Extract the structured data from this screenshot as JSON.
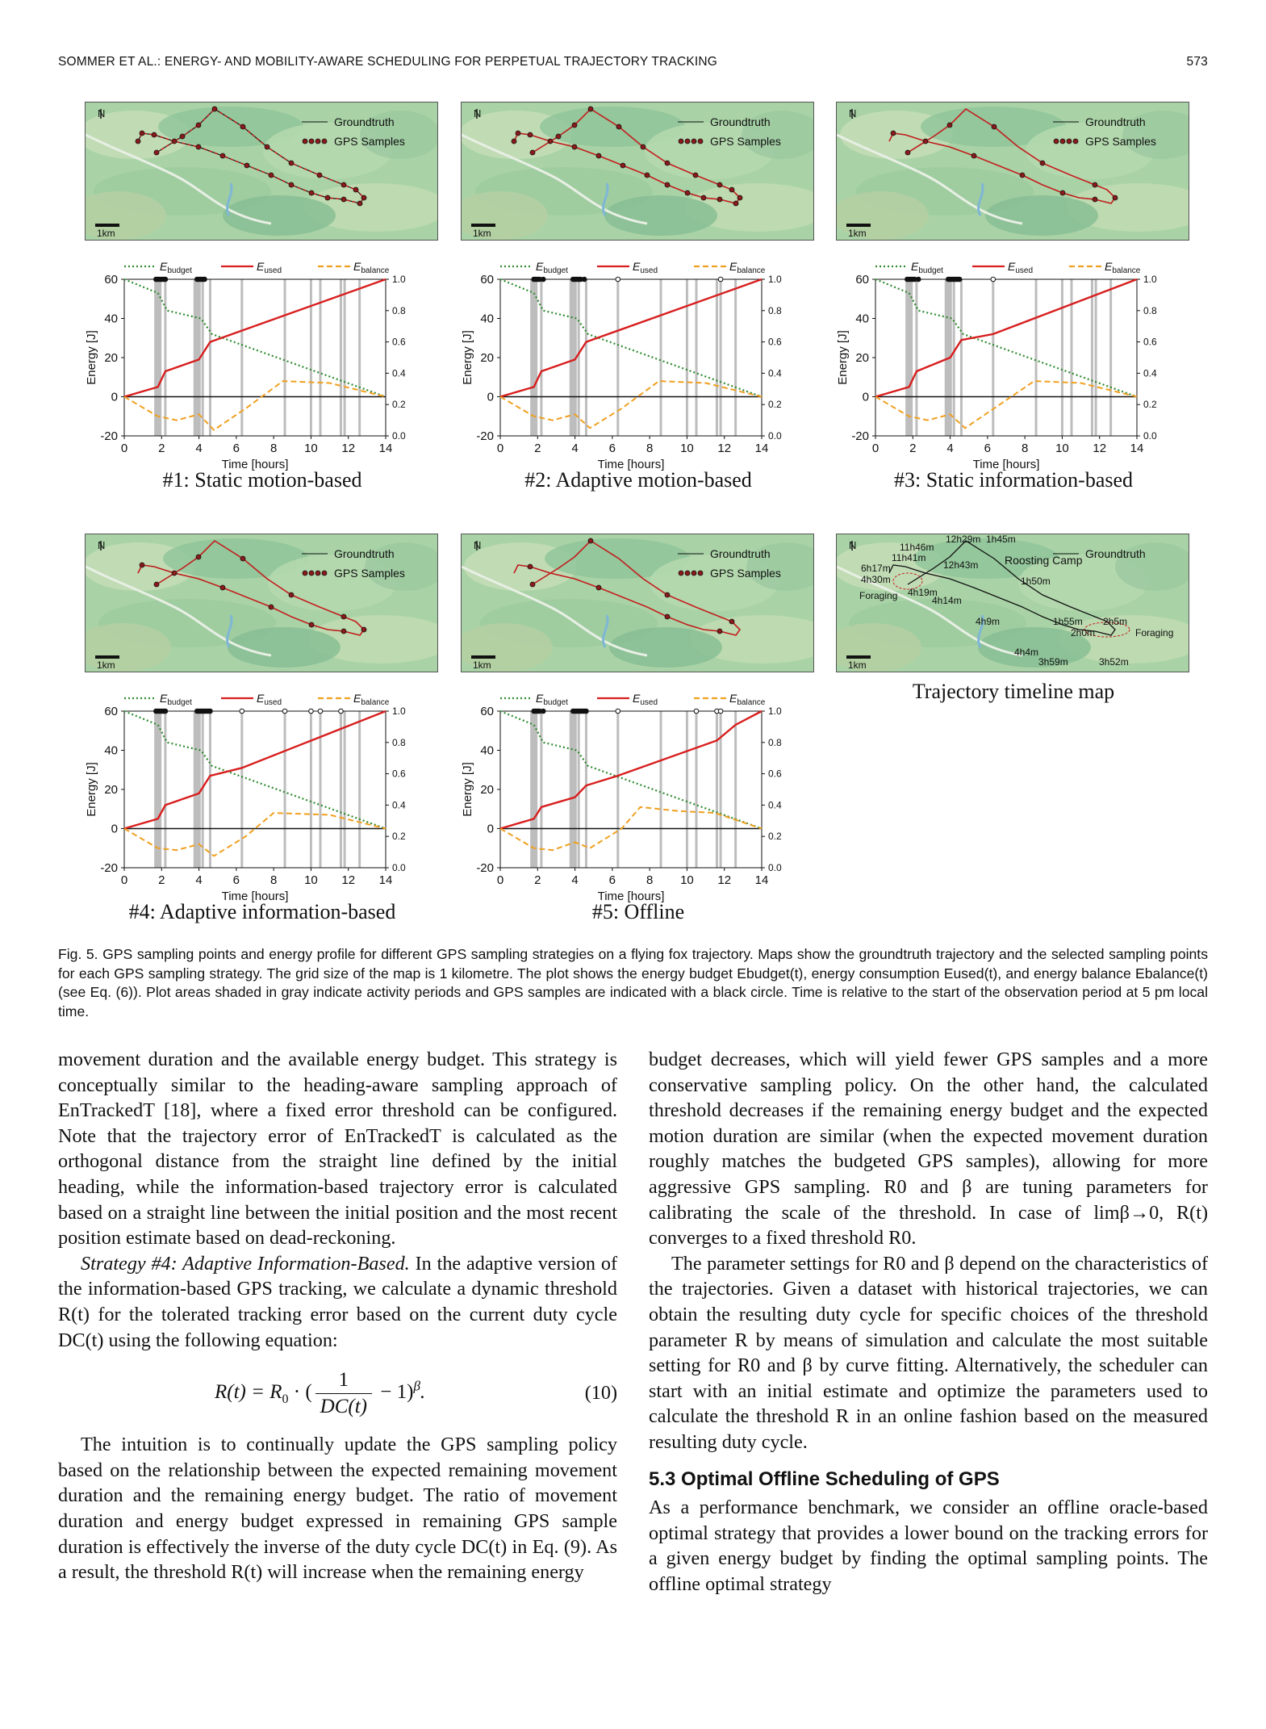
{
  "header": {
    "running_title": "SOMMER ET AL.: ENERGY- AND MOBILITY-AWARE SCHEDULING FOR PERPETUAL TRAJECTORY TRACKING",
    "page_number": "573"
  },
  "map_common": {
    "north": "N",
    "scale": "1km",
    "legend_groundtruth": "Groundtruth",
    "legend_samples": "GPS Samples"
  },
  "timeline_map": {
    "caption": "Trajectory timeline map",
    "labels": [
      "12h29m",
      "1h45m",
      "11h46m",
      "11h41m",
      "12h43m",
      "Roosting Camp",
      "6h17m",
      "4h30m",
      "1h50m",
      "Foraging",
      "4h19m",
      "4h14m",
      "4h9m",
      "1h55m",
      "2h5m",
      "2h0m",
      "Foraging",
      "4h4m",
      "3h59m",
      "3h52m"
    ]
  },
  "plot_common": {
    "legend_budget": "E",
    "legend_budget_sub": "budget",
    "legend_used": "E",
    "legend_used_sub": "used",
    "legend_balance": "E",
    "legend_balance_sub": "balance",
    "ylabel": "Energy [J]",
    "xlabel": "Time [hours]"
  },
  "chart_data": [
    {
      "type": "line",
      "title": "#1: Static motion-based",
      "x": [
        0,
        2,
        4,
        6,
        8,
        10,
        12,
        14
      ],
      "xlim": [
        0,
        14
      ],
      "ylim": [
        -20,
        60
      ],
      "y2lim": [
        0.0,
        1.0
      ],
      "xlabel": "Time [hours]",
      "ylabel": "Energy [J]",
      "series": [
        {
          "name": "E_budget",
          "points": [
            [
              0,
              60
            ],
            [
              1.8,
              53
            ],
            [
              2.3,
              44
            ],
            [
              4.1,
              40
            ],
            [
              4.7,
              32
            ],
            [
              14,
              0
            ]
          ]
        },
        {
          "name": "E_used",
          "points": [
            [
              0,
              0
            ],
            [
              1.8,
              5
            ],
            [
              2.2,
              13
            ],
            [
              4.0,
              19
            ],
            [
              4.6,
              28
            ],
            [
              14,
              60
            ]
          ]
        },
        {
          "name": "E_balance",
          "points": [
            [
              0,
              0
            ],
            [
              1.8,
              -10
            ],
            [
              2.8,
              -12
            ],
            [
              4.0,
              -9
            ],
            [
              4.8,
              -17
            ],
            [
              6.5,
              -6
            ],
            [
              8.5,
              8
            ],
            [
              11,
              7
            ],
            [
              14,
              0
            ]
          ]
        }
      ],
      "samples_hours": [
        1.7,
        1.8,
        1.9,
        2.0,
        2.1,
        2.2,
        3.9,
        4.0,
        4.1,
        4.2,
        4.3
      ],
      "activity_hours": [
        1.8,
        2.2,
        3.9,
        4.2,
        4.6,
        6.3,
        8.6,
        10.0,
        10.5,
        11.6,
        11.8,
        12.6
      ]
    },
    {
      "type": "line",
      "title": "#2: Adaptive motion-based",
      "x": [
        0,
        2,
        4,
        6,
        8,
        10,
        12,
        14
      ],
      "xlim": [
        0,
        14
      ],
      "ylim": [
        -20,
        60
      ],
      "y2lim": [
        0.0,
        1.0
      ],
      "xlabel": "Time [hours]",
      "ylabel": "Energy [J]",
      "series": [
        {
          "name": "E_budget",
          "points": [
            [
              0,
              60
            ],
            [
              1.8,
              53
            ],
            [
              2.3,
              44
            ],
            [
              4.1,
              40
            ],
            [
              4.7,
              32
            ],
            [
              14,
              0
            ]
          ]
        },
        {
          "name": "E_used",
          "points": [
            [
              0,
              0
            ],
            [
              1.8,
              5
            ],
            [
              2.2,
              13
            ],
            [
              4.0,
              19
            ],
            [
              4.6,
              28
            ],
            [
              14,
              60
            ]
          ]
        },
        {
          "name": "E_balance",
          "points": [
            [
              0,
              0
            ],
            [
              1.8,
              -10
            ],
            [
              2.8,
              -12
            ],
            [
              4.0,
              -9
            ],
            [
              4.8,
              -16
            ],
            [
              6.5,
              -6
            ],
            [
              8.5,
              8
            ],
            [
              11,
              7
            ],
            [
              14,
              0
            ]
          ]
        }
      ],
      "samples_hours": [
        1.8,
        1.9,
        2.0,
        2.1,
        2.3,
        3.9,
        4.0,
        4.1,
        4.2,
        4.3,
        4.5,
        6.3,
        11.8
      ],
      "activity_hours": [
        1.8,
        2.2,
        3.9,
        4.2,
        4.6,
        6.3,
        8.6,
        10.0,
        10.5,
        11.6,
        11.8,
        12.6
      ]
    },
    {
      "type": "line",
      "title": "#3: Static information-based",
      "x": [
        0,
        2,
        4,
        6,
        8,
        10,
        12,
        14
      ],
      "xlim": [
        0,
        14
      ],
      "ylim": [
        -20,
        60
      ],
      "y2lim": [
        0.0,
        1.0
      ],
      "xlabel": "Time [hours]",
      "ylabel": "Energy [J]",
      "series": [
        {
          "name": "E_budget",
          "points": [
            [
              0,
              60
            ],
            [
              1.8,
              53
            ],
            [
              2.3,
              44
            ],
            [
              4.1,
              40
            ],
            [
              4.7,
              32
            ],
            [
              14,
              0
            ]
          ]
        },
        {
          "name": "E_used",
          "points": [
            [
              0,
              0
            ],
            [
              1.8,
              5
            ],
            [
              2.2,
              13
            ],
            [
              4.0,
              20
            ],
            [
              4.6,
              29
            ],
            [
              6.3,
              32
            ],
            [
              14,
              60
            ]
          ]
        },
        {
          "name": "E_balance",
          "points": [
            [
              0,
              0
            ],
            [
              1.8,
              -10
            ],
            [
              2.8,
              -12
            ],
            [
              4.0,
              -9
            ],
            [
              4.8,
              -16
            ],
            [
              6.5,
              -5
            ],
            [
              8.5,
              8
            ],
            [
              11,
              7
            ],
            [
              14,
              0
            ]
          ]
        }
      ],
      "samples_hours": [
        1.7,
        1.8,
        1.9,
        2.0,
        2.1,
        2.3,
        3.9,
        4.0,
        4.1,
        4.2,
        4.3,
        4.4,
        4.5,
        6.3
      ],
      "activity_hours": [
        1.8,
        2.2,
        3.9,
        4.2,
        4.6,
        6.3,
        8.6,
        10.0,
        10.5,
        11.6,
        11.8,
        12.6
      ]
    },
    {
      "type": "line",
      "title": "#4: Adaptive information-based",
      "x": [
        0,
        2,
        4,
        6,
        8,
        10,
        12,
        14
      ],
      "xlim": [
        0,
        14
      ],
      "ylim": [
        -20,
        60
      ],
      "y2lim": [
        0.0,
        1.0
      ],
      "xlabel": "Time [hours]",
      "ylabel": "Energy [J]",
      "series": [
        {
          "name": "E_budget",
          "points": [
            [
              0,
              60
            ],
            [
              1.8,
              53
            ],
            [
              2.3,
              44
            ],
            [
              4.1,
              40
            ],
            [
              4.7,
              32
            ],
            [
              14,
              0
            ]
          ]
        },
        {
          "name": "E_used",
          "points": [
            [
              0,
              0
            ],
            [
              1.8,
              5
            ],
            [
              2.2,
              12
            ],
            [
              4.0,
              18
            ],
            [
              4.6,
              27
            ],
            [
              6.3,
              31
            ],
            [
              14,
              60
            ]
          ]
        },
        {
          "name": "E_balance",
          "points": [
            [
              0,
              0
            ],
            [
              1.8,
              -10
            ],
            [
              2.8,
              -11
            ],
            [
              4.0,
              -8
            ],
            [
              4.8,
              -14
            ],
            [
              6.5,
              -4
            ],
            [
              8.0,
              8
            ],
            [
              11,
              7
            ],
            [
              14,
              0
            ]
          ]
        }
      ],
      "samples_hours": [
        1.7,
        1.8,
        1.9,
        2.0,
        2.1,
        2.2,
        3.9,
        4.0,
        4.1,
        4.2,
        4.3,
        4.4,
        4.5,
        4.6,
        6.3,
        8.6,
        10.0,
        10.5,
        11.6
      ],
      "activity_hours": [
        1.8,
        2.2,
        3.9,
        4.2,
        4.6,
        6.3,
        8.6,
        10.0,
        10.5,
        11.6,
        11.8,
        12.6
      ]
    },
    {
      "type": "line",
      "title": "#5: Offline",
      "x": [
        0,
        2,
        4,
        6,
        8,
        10,
        12,
        14
      ],
      "xlim": [
        0,
        14
      ],
      "ylim": [
        -20,
        60
      ],
      "y2lim": [
        0.0,
        1.0
      ],
      "xlabel": "Time [hours]",
      "ylabel": "Energy [J]",
      "series": [
        {
          "name": "E_budget",
          "points": [
            [
              0,
              60
            ],
            [
              1.8,
              53
            ],
            [
              2.3,
              44
            ],
            [
              4.1,
              40
            ],
            [
              4.7,
              32
            ],
            [
              14,
              0
            ]
          ]
        },
        {
          "name": "E_used",
          "points": [
            [
              0,
              0
            ],
            [
              1.8,
              5
            ],
            [
              2.2,
              11
            ],
            [
              4.0,
              16
            ],
            [
              4.6,
              22
            ],
            [
              6.3,
              27
            ],
            [
              11.6,
              45
            ],
            [
              12.6,
              53
            ],
            [
              14,
              60
            ]
          ]
        },
        {
          "name": "E_balance",
          "points": [
            [
              0,
              0
            ],
            [
              1.8,
              -10
            ],
            [
              2.8,
              -11
            ],
            [
              4.0,
              -7
            ],
            [
              4.8,
              -10
            ],
            [
              6.5,
              0
            ],
            [
              7.5,
              11
            ],
            [
              9.5,
              9
            ],
            [
              11.5,
              8
            ],
            [
              14,
              0
            ]
          ]
        }
      ],
      "samples_hours": [
        1.8,
        1.9,
        2.0,
        2.1,
        2.3,
        3.9,
        4.0,
        4.1,
        4.2,
        4.3,
        4.4,
        4.5,
        4.6,
        6.3,
        10.5,
        11.6,
        11.8
      ],
      "activity_hours": [
        1.8,
        2.2,
        3.9,
        4.2,
        4.6,
        6.3,
        8.6,
        10.0,
        10.5,
        11.6,
        11.8,
        12.6
      ]
    }
  ],
  "figure_caption": "Fig. 5. GPS sampling points and energy profile for different GPS sampling strategies on a flying fox trajectory. Maps show the groundtruth trajectory and the selected sampling points for each GPS sampling strategy. The grid size of the map is 1 kilometre. The plot shows the energy budget Ebudget(t), energy consumption Eused(t), and energy balance Ebalance(t) (see Eq. (6)). Plot areas shaded in gray indicate activity periods and GPS samples are indicated with a black circle. Time is relative to the start of the observation period at 5 pm local time.",
  "left_col": {
    "p1": "movement duration and the available energy budget. This strategy is conceptually similar to the heading-aware sampling approach of EnTrackedT [18], where a fixed error threshold can be configured. Note that the trajectory error of EnTrackedT is calculated as the orthogonal distance from the straight line defined by the initial heading, while the information-based trajectory error is calculated based on a straight line between the initial position and the most recent position estimate based on dead-reckoning.",
    "p2_lead": "Strategy #4: Adaptive Information-Based.",
    "p2": " In the adaptive version of the information-based GPS tracking, we calculate a dynamic threshold R(t) for the tolerated tracking error based on the current duty cycle DC(t) using the following equation:",
    "eq_lhs": "R(t) = R",
    "eq_sub": "0",
    "eq_dot": " · (",
    "eq_num": "1",
    "eq_den": "DC(t)",
    "eq_rest": " − 1)",
    "eq_exp": "β",
    "eq_end": ".",
    "eq_no": "(10)",
    "p3": "The intuition is to continually update the GPS sampling policy based on the relationship between the expected remaining movement duration and the remaining energy budget. The ratio of movement duration and energy budget expressed in remaining GPS sample duration is effectively the inverse of the duty cycle DC(t) in Eq. (9). As a result, the threshold R(t) will increase when the remaining energy"
  },
  "right_col": {
    "p1": "budget decreases, which will yield fewer GPS samples and a more conservative sampling policy. On the other hand, the calculated threshold decreases if the remaining energy budget and the expected motion duration are similar (when the expected movement duration roughly matches the budgeted GPS samples), allowing for more aggressive GPS sampling. R0 and β are tuning parameters for calibrating the scale of the threshold. In case of limβ→0, R(t) converges to a fixed threshold R0.",
    "p2": "The parameter settings for R0 and β depend on the characteristics of the trajectories. Given a dataset with historical trajectories, we can obtain the resulting duty cycle for specific choices of the threshold parameter R by means of simulation and calculate the most suitable setting for R0 and β by curve fitting. Alternatively, the scheduler can start with an initial estimate and optimize the parameters used to calculate the threshold R in an online fashion based on the measured resulting duty cycle.",
    "section": "5.3   Optimal Offline Scheduling of GPS",
    "p3": "As a performance benchmark, we consider an offline oracle-based optimal strategy that provides a lower bound on the tracking errors for a given energy budget by finding the optimal sampling points. The offline optimal strategy"
  }
}
